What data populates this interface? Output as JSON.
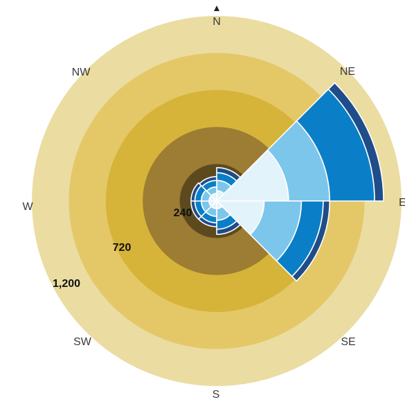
{
  "chart_data": {
    "type": "wind-rose",
    "directions": [
      "N",
      "NE",
      "E",
      "SE",
      "S",
      "SW",
      "W",
      "NW"
    ],
    "ring_labels": [
      "240",
      "720",
      "1,200"
    ],
    "ring_label_values": [
      240,
      720,
      1200
    ],
    "radial_max": 1440,
    "ring_colors": [
      "#5c4a1e",
      "#9d7c33",
      "#d6b43a",
      "#e4c868",
      "#ebdca2"
    ],
    "bin_colors": [
      "#e3f3fb",
      "#7cc6ec",
      "#0a7fc7",
      "#1f4d8a"
    ],
    "sectors": [
      {
        "direction": "N",
        "center_deg": 22.5,
        "cum_values": [
          80,
          160,
          220,
          260
        ]
      },
      {
        "direction": "NE",
        "center_deg": 67.5,
        "cum_values": [
          560,
          880,
          1230,
          1300
        ]
      },
      {
        "direction": "E",
        "center_deg": 112.5,
        "cum_values": [
          370,
          660,
          830,
          880
        ]
      },
      {
        "direction": "SE",
        "center_deg": 157.5,
        "cum_values": [
          60,
          150,
          220,
          260
        ]
      },
      {
        "direction": "S",
        "center_deg": 202.5,
        "cum_values": [
          60,
          120,
          170,
          200
        ]
      },
      {
        "direction": "SW",
        "center_deg": 247.5,
        "cum_values": [
          60,
          120,
          170,
          200
        ]
      },
      {
        "direction": "W",
        "center_deg": 292.5,
        "cum_values": [
          60,
          120,
          170,
          200
        ]
      },
      {
        "direction": "NW",
        "center_deg": 337.5,
        "cum_values": [
          60,
          110,
          160,
          190
        ]
      }
    ]
  }
}
